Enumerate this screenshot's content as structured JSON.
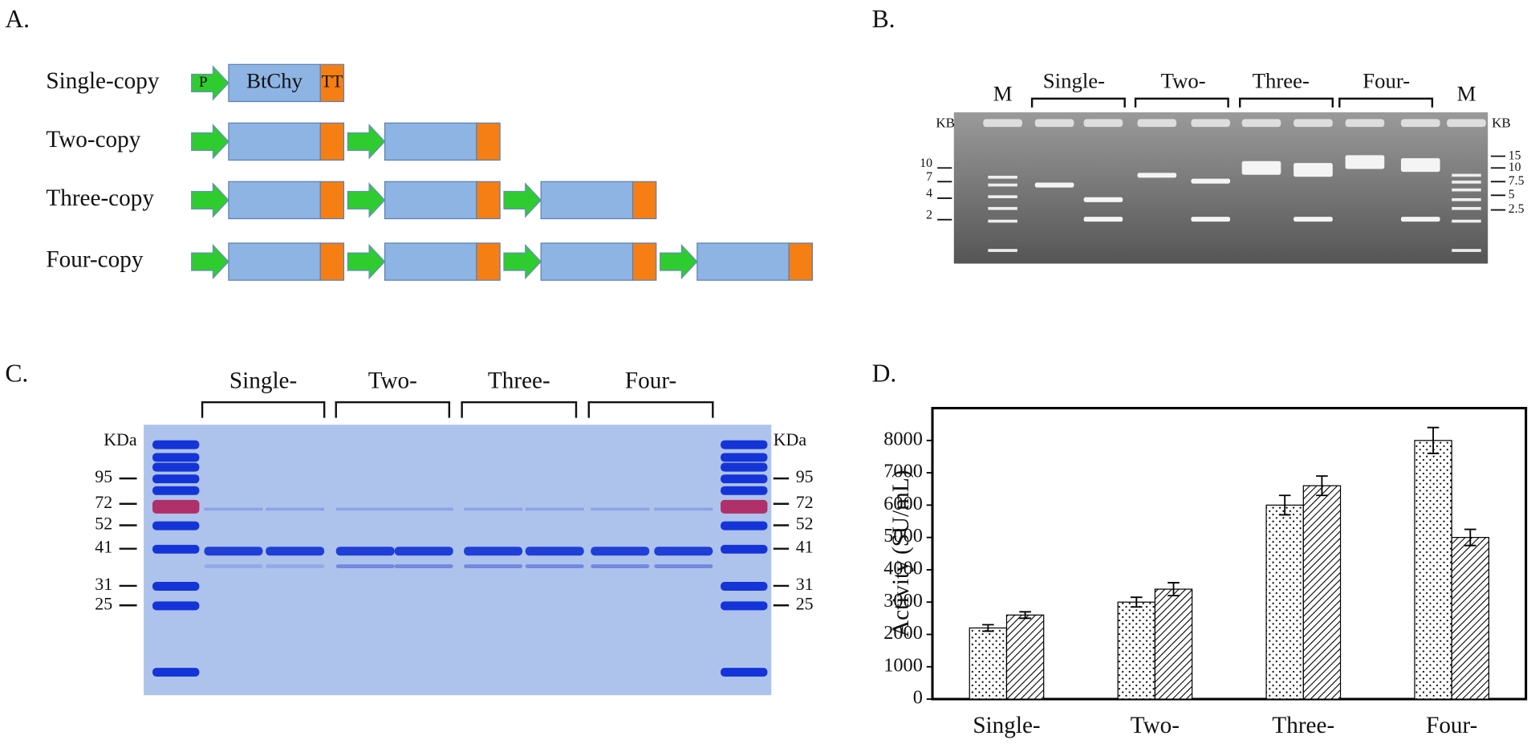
{
  "panels": {
    "a": "A.",
    "b": "B.",
    "c": "C.",
    "d": "D."
  },
  "diagram": {
    "rows": [
      "Single-copy",
      "Two-copy",
      "Three-copy",
      "Four-copy"
    ],
    "promoter": "P",
    "gene": "BtChy",
    "terminator": "TT"
  },
  "dna_gel": {
    "lanes": [
      "M",
      "Single-",
      "Two-",
      "Three-",
      "Four-",
      "M"
    ],
    "unit_left": "KB",
    "unit_right": "KB",
    "markers_left": [
      "10",
      "7",
      "4",
      "2"
    ],
    "markers_right": [
      "15",
      "10",
      "7.5",
      "5",
      "2.5"
    ]
  },
  "protein_gel": {
    "groups": [
      "Single-",
      "Two-",
      "Three-",
      "Four-"
    ],
    "unit_left": "KDa",
    "unit_right": "KDa",
    "markers": [
      "95",
      "72",
      "52",
      "41",
      "31",
      "25"
    ]
  },
  "chart_data": {
    "type": "bar",
    "y_label": "Activity (SU/mL)",
    "categories": [
      "Single-",
      "Two-",
      "Three-",
      "Four-"
    ],
    "series": [
      {
        "color": "#000000",
        "pattern": "dots",
        "values": [
          2200,
          3000,
          6000,
          8000
        ],
        "errors": [
          100,
          150,
          300,
          400
        ]
      },
      {
        "color": "#000000",
        "pattern": "hatch",
        "values": [
          2600,
          3400,
          6600,
          5000
        ],
        "errors": [
          100,
          200,
          300,
          250
        ]
      }
    ],
    "ylim": [
      0,
      9000
    ],
    "yticks": [
      0,
      1000,
      2000,
      3000,
      4000,
      5000,
      6000,
      7000,
      8000
    ]
  }
}
